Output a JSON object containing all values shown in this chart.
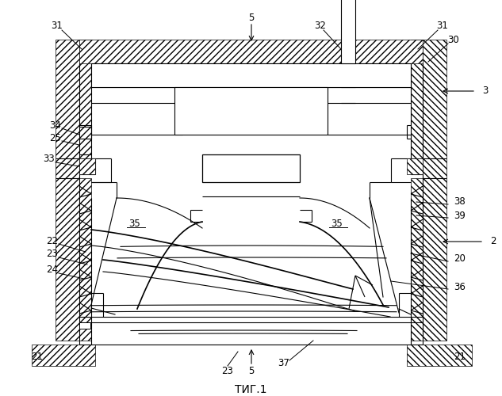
{
  "title": "ΤИГ.1",
  "bg_color": "#ffffff",
  "figsize": [
    6.33,
    5.0
  ],
  "dpi": 100
}
